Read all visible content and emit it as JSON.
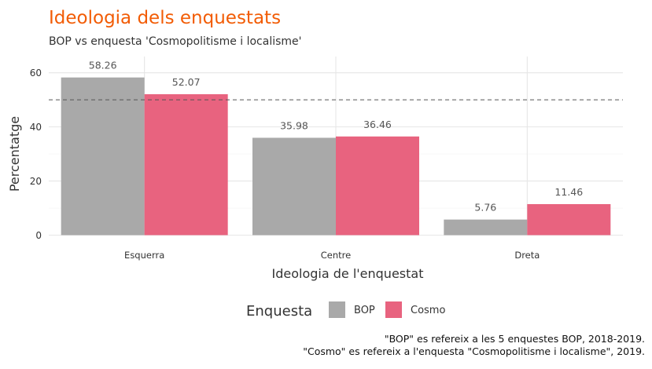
{
  "chart_data": {
    "type": "bar",
    "title": "Ideologia dels enquestats",
    "subtitle": "BOP vs enquesta 'Cosmopolitisme i localisme'",
    "xlabel": "Ideologia de l'enquestat",
    "ylabel": "Percentatge",
    "categories": [
      "Esquerra",
      "Centre",
      "Dreta"
    ],
    "series": [
      {
        "name": "BOP",
        "values": [
          58.26,
          35.98,
          5.76
        ],
        "labels": [
          "58.26",
          "35.98",
          "5.76"
        ],
        "color": "#a9a9a9"
      },
      {
        "name": "Cosmo",
        "values": [
          52.07,
          36.46,
          11.46
        ],
        "labels": [
          "52.07",
          "36.46",
          "11.46"
        ],
        "color": "#e8637f"
      }
    ],
    "ylim": [
      0,
      66
    ],
    "yticks": [
      0,
      20,
      40,
      60
    ],
    "ytick_labels": [
      "0",
      "20",
      "40",
      "60"
    ],
    "reference_line": {
      "y": 50,
      "style": "dashed",
      "color": "#555555"
    },
    "grid": true,
    "legend": {
      "title": "Enquesta",
      "placement": "bottom"
    },
    "caption": [
      "\"BOP\" es refereix a les 5 enquestes BOP, 2018-2019.",
      "\"Cosmo\" es refereix a l'enquesta \"Cosmopolitisme i localisme\", 2019."
    ]
  }
}
